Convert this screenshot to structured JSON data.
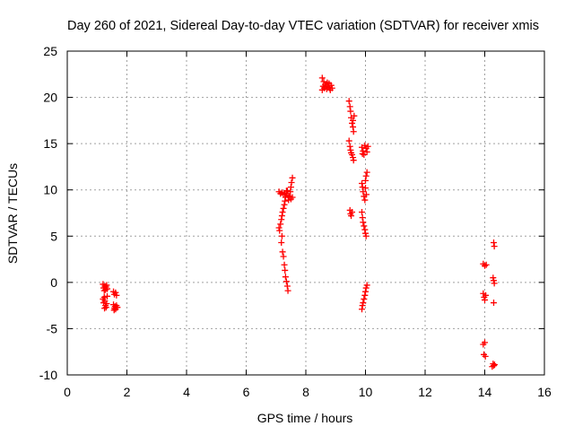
{
  "chart_data": {
    "type": "scatter",
    "title": "Day 260 of 2021, Sidereal Day-to-day VTEC variation (SDTVAR) for receiver xmis",
    "xlabel": "GPS time / hours",
    "ylabel": "SDTVAR / TECUs",
    "xlim": [
      0,
      16
    ],
    "ylim": [
      -10,
      25
    ],
    "xticks": [
      0,
      2,
      4,
      6,
      8,
      10,
      12,
      14,
      16
    ],
    "yticks": [
      -10,
      -5,
      0,
      5,
      10,
      15,
      20,
      25
    ],
    "grid": true,
    "marker": "plus",
    "color": "#ff0000",
    "series": [
      {
        "name": "SDTVAR",
        "points": [
          [
            1.2,
            -0.2
          ],
          [
            1.22,
            -0.6
          ],
          [
            1.24,
            -0.9
          ],
          [
            1.26,
            -0.4
          ],
          [
            1.28,
            -0.8
          ],
          [
            1.3,
            -0.5
          ],
          [
            1.32,
            -0.3
          ],
          [
            1.34,
            -0.7
          ],
          [
            1.2,
            -1.8
          ],
          [
            1.22,
            -2.2
          ],
          [
            1.24,
            -1.6
          ],
          [
            1.26,
            -2.0
          ],
          [
            1.28,
            -2.5
          ],
          [
            1.3,
            -2.7
          ],
          [
            1.32,
            -2.3
          ],
          [
            1.34,
            -1.5
          ],
          [
            1.25,
            -2.8
          ],
          [
            1.55,
            -1.0
          ],
          [
            1.58,
            -1.3
          ],
          [
            1.62,
            -1.1
          ],
          [
            1.65,
            -1.4
          ],
          [
            1.55,
            -2.4
          ],
          [
            1.58,
            -2.8
          ],
          [
            1.6,
            -2.6
          ],
          [
            1.62,
            -2.9
          ],
          [
            1.65,
            -2.5
          ],
          [
            1.68,
            -2.7
          ],
          [
            1.57,
            -3.0
          ],
          [
            7.1,
            5.9
          ],
          [
            7.12,
            5.6
          ],
          [
            7.15,
            6.3
          ],
          [
            7.18,
            6.8
          ],
          [
            7.2,
            7.2
          ],
          [
            7.22,
            7.6
          ],
          [
            7.25,
            8.0
          ],
          [
            7.28,
            8.4
          ],
          [
            7.3,
            8.8
          ],
          [
            7.32,
            9.2
          ],
          [
            7.35,
            9.6
          ],
          [
            7.38,
            9.9
          ],
          [
            7.4,
            9.4
          ],
          [
            7.42,
            8.9
          ],
          [
            7.45,
            9.3
          ],
          [
            7.48,
            9.8
          ],
          [
            7.5,
            10.3
          ],
          [
            7.52,
            10.8
          ],
          [
            7.55,
            11.3
          ],
          [
            7.5,
            9.0
          ],
          [
            7.55,
            9.2
          ],
          [
            7.1,
            9.8
          ],
          [
            7.15,
            9.6
          ],
          [
            7.2,
            9.7
          ],
          [
            7.25,
            9.5
          ],
          [
            7.3,
            9.6
          ],
          [
            7.35,
            9.9
          ],
          [
            7.2,
            5.0
          ],
          [
            7.18,
            4.3
          ],
          [
            7.22,
            3.3
          ],
          [
            7.25,
            2.8
          ],
          [
            7.28,
            1.9
          ],
          [
            7.3,
            1.3
          ],
          [
            7.32,
            0.6
          ],
          [
            7.35,
            0.1
          ],
          [
            7.38,
            -0.4
          ],
          [
            7.4,
            -0.9
          ],
          [
            8.55,
            22.1
          ],
          [
            8.6,
            21.7
          ],
          [
            8.62,
            21.0
          ],
          [
            8.65,
            21.4
          ],
          [
            8.68,
            21.2
          ],
          [
            8.7,
            20.9
          ],
          [
            8.72,
            21.6
          ],
          [
            8.75,
            21.1
          ],
          [
            8.78,
            21.5
          ],
          [
            8.8,
            21.0
          ],
          [
            8.82,
            20.8
          ],
          [
            8.85,
            21.3
          ],
          [
            8.88,
            21.0
          ],
          [
            8.55,
            20.8
          ],
          [
            8.58,
            21.2
          ],
          [
            9.45,
            19.6
          ],
          [
            9.48,
            19.0
          ],
          [
            9.5,
            18.5
          ],
          [
            9.52,
            17.8
          ],
          [
            9.55,
            17.2
          ],
          [
            9.58,
            16.8
          ],
          [
            9.6,
            16.3
          ],
          [
            9.62,
            18.0
          ],
          [
            9.58,
            17.5
          ],
          [
            9.45,
            15.3
          ],
          [
            9.48,
            14.7
          ],
          [
            9.5,
            14.3
          ],
          [
            9.52,
            14.0
          ],
          [
            9.55,
            13.8
          ],
          [
            9.58,
            13.5
          ],
          [
            9.6,
            13.2
          ],
          [
            9.48,
            7.8
          ],
          [
            9.5,
            7.4
          ],
          [
            9.55,
            7.6
          ],
          [
            9.52,
            7.2
          ],
          [
            9.88,
            14.6
          ],
          [
            9.92,
            14.2
          ],
          [
            9.95,
            13.8
          ],
          [
            9.98,
            14.8
          ],
          [
            10.02,
            14.5
          ],
          [
            10.05,
            14.1
          ],
          [
            10.08,
            14.7
          ],
          [
            9.9,
            13.9
          ],
          [
            9.88,
            10.7
          ],
          [
            9.9,
            10.3
          ],
          [
            9.92,
            9.8
          ],
          [
            9.95,
            9.3
          ],
          [
            9.98,
            8.9
          ],
          [
            10.0,
            11.0
          ],
          [
            10.02,
            11.5
          ],
          [
            10.05,
            11.9
          ],
          [
            10.0,
            10.2
          ],
          [
            10.03,
            9.5
          ],
          [
            9.88,
            7.6
          ],
          [
            9.9,
            7.0
          ],
          [
            9.92,
            6.5
          ],
          [
            9.95,
            6.1
          ],
          [
            9.98,
            5.7
          ],
          [
            10.0,
            5.3
          ],
          [
            10.02,
            5.0
          ],
          [
            9.88,
            -2.9
          ],
          [
            9.9,
            -2.5
          ],
          [
            9.92,
            -2.2
          ],
          [
            9.95,
            -1.8
          ],
          [
            9.98,
            -1.4
          ],
          [
            10.0,
            -1.0
          ],
          [
            10.02,
            -0.6
          ],
          [
            10.05,
            -0.3
          ],
          [
            13.95,
            2.0
          ],
          [
            14.0,
            1.8
          ],
          [
            14.05,
            1.9
          ],
          [
            13.95,
            -1.2
          ],
          [
            13.98,
            -1.6
          ],
          [
            14.0,
            -1.9
          ],
          [
            14.03,
            -1.4
          ],
          [
            13.95,
            -6.7
          ],
          [
            14.0,
            -6.5
          ],
          [
            13.97,
            -7.8
          ],
          [
            14.02,
            -8.0
          ],
          [
            14.3,
            4.3
          ],
          [
            14.32,
            3.9
          ],
          [
            14.28,
            0.5
          ],
          [
            14.3,
            0.2
          ],
          [
            14.32,
            -0.1
          ],
          [
            14.3,
            -2.2
          ],
          [
            14.25,
            -9.1
          ],
          [
            14.28,
            -8.8
          ],
          [
            14.3,
            -9.0
          ],
          [
            14.33,
            -8.9
          ]
        ]
      }
    ]
  }
}
